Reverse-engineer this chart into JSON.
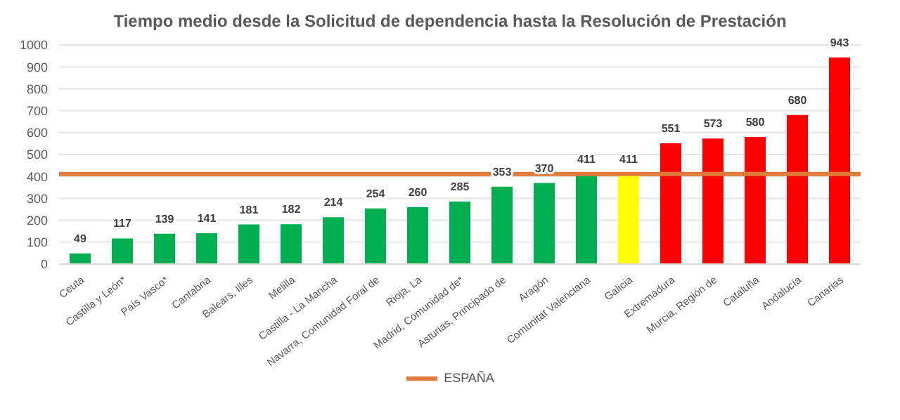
{
  "chart_data": {
    "type": "bar",
    "title": "Tiempo medio desde la Solicitud de dependencia hasta la Resolución de Prestación",
    "categories": [
      "Ceuta",
      "Castilla y León*",
      "País Vasco*",
      "Cantabria",
      "Balears, Illes",
      "Melilla",
      "Castilla - La Mancha",
      "Navarra, Comunidad Foral de",
      "Rioja, La",
      "Madrid, Comunidad de*",
      "Asturias, Principado de",
      "Aragón",
      "Comunitat Valenciana",
      "Galicia",
      "Extremadura",
      "Murcia, Región de",
      "Cataluña",
      "Andalucía",
      "Canarias"
    ],
    "values": [
      49,
      117,
      139,
      141,
      181,
      182,
      214,
      254,
      260,
      285,
      353,
      370,
      411,
      411,
      551,
      573,
      580,
      680,
      943
    ],
    "colors": [
      "#00b050",
      "#00b050",
      "#00b050",
      "#00b050",
      "#00b050",
      "#00b050",
      "#00b050",
      "#00b050",
      "#00b050",
      "#00b050",
      "#00b050",
      "#00b050",
      "#00b050",
      "#ffff00",
      "#ff0000",
      "#ff0000",
      "#ff0000",
      "#ff0000",
      "#ff0000"
    ],
    "ylim": [
      0,
      1000
    ],
    "yticks": [
      0,
      100,
      200,
      300,
      400,
      500,
      600,
      700,
      800,
      900,
      1000
    ],
    "grid": "y",
    "data_labels": true,
    "legend": "bottom",
    "ref_lines": [
      {
        "axis": "y",
        "value": 411,
        "label": "ESPAÑA",
        "color": "#e07b39"
      }
    ]
  }
}
